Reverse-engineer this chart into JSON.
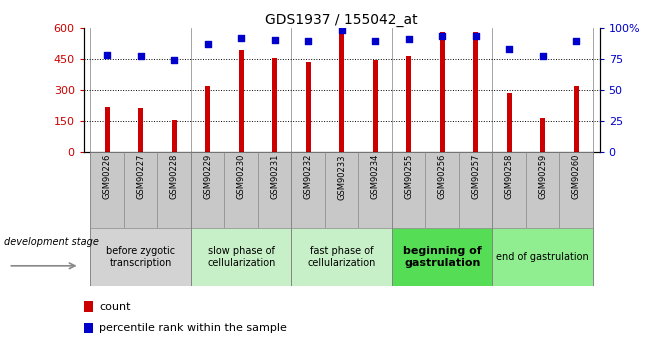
{
  "title": "GDS1937 / 155042_at",
  "samples": [
    "GSM90226",
    "GSM90227",
    "GSM90228",
    "GSM90229",
    "GSM90230",
    "GSM90231",
    "GSM90232",
    "GSM90233",
    "GSM90234",
    "GSM90255",
    "GSM90256",
    "GSM90257",
    "GSM90258",
    "GSM90259",
    "GSM90260"
  ],
  "counts": [
    215,
    210,
    155,
    320,
    490,
    455,
    435,
    598,
    445,
    462,
    580,
    580,
    285,
    165,
    320
  ],
  "percentiles": [
    78,
    77,
    74,
    87,
    92,
    90,
    89,
    98,
    89,
    91,
    93,
    93,
    83,
    77,
    89
  ],
  "ylim_left": [
    0,
    600
  ],
  "ylim_right": [
    0,
    100
  ],
  "yticks_left": [
    0,
    150,
    300,
    450,
    600
  ],
  "yticks_right": [
    0,
    25,
    50,
    75,
    100
  ],
  "bar_color": "#cc0000",
  "scatter_color": "#0000cc",
  "stage_groups": [
    {
      "label": "before zygotic\ntranscription",
      "samples": [
        "GSM90226",
        "GSM90227",
        "GSM90228"
      ],
      "bg": "#d3d3d3",
      "bold": false,
      "fontsize": 7
    },
    {
      "label": "slow phase of\ncellularization",
      "samples": [
        "GSM90229",
        "GSM90230",
        "GSM90231"
      ],
      "bg": "#c8f0c8",
      "bold": false,
      "fontsize": 7
    },
    {
      "label": "fast phase of\ncellularization",
      "samples": [
        "GSM90232",
        "GSM90233",
        "GSM90234"
      ],
      "bg": "#c8f0c8",
      "bold": false,
      "fontsize": 7
    },
    {
      "label": "beginning of\ngastrulation",
      "samples": [
        "GSM90255",
        "GSM90256",
        "GSM90257"
      ],
      "bg": "#55dd55",
      "bold": true,
      "fontsize": 8
    },
    {
      "label": "end of gastrulation",
      "samples": [
        "GSM90258",
        "GSM90259",
        "GSM90260"
      ],
      "bg": "#90ee90",
      "bold": false,
      "fontsize": 7
    }
  ],
  "legend_count_label": "count",
  "legend_pct_label": "percentile rank within the sample",
  "dev_stage_label": "development stage",
  "bar_width": 0.15,
  "xtick_box_color": "#c8c8c8",
  "fig_bg": "#ffffff"
}
